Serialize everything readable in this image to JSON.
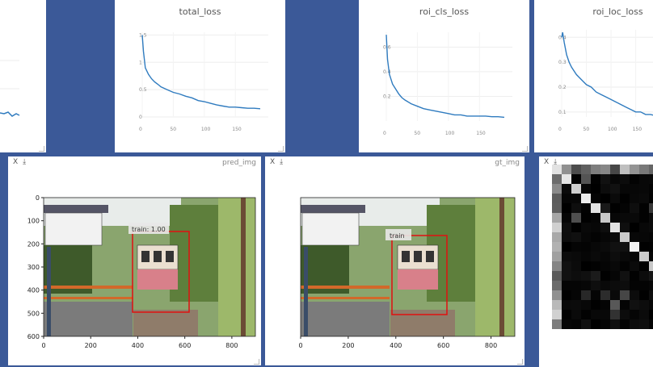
{
  "colors": {
    "background": "#3b5998",
    "line": "#2f7bbf",
    "bbox": "#e01010"
  },
  "charts": [
    {
      "title": "",
      "ticks_y": [],
      "ticks_x": []
    },
    {
      "title": "total_loss",
      "ticks_y": [
        "1.5",
        "1",
        "0.5",
        "0"
      ],
      "ticks_x": [
        "0",
        "50",
        "100",
        "150"
      ]
    },
    {
      "title": "roi_cls_loss",
      "ticks_y": [
        "0.6",
        "0.4",
        "0.2"
      ],
      "ticks_x": [
        "0",
        "50",
        "100",
        "150"
      ]
    },
    {
      "title": "roi_loc_loss",
      "ticks_y": [
        "0.4",
        "0.3",
        "0.2",
        "0.1"
      ],
      "ticks_x": [
        "0",
        "50",
        "100",
        "150"
      ]
    }
  ],
  "chart_data": [
    {
      "type": "line",
      "title": "total_loss",
      "x": [
        0,
        2,
        5,
        10,
        15,
        20,
        25,
        30,
        40,
        50,
        60,
        70,
        80,
        90,
        100,
        110,
        120,
        130,
        140,
        150,
        160,
        170,
        180,
        190
      ],
      "y": [
        1.5,
        1.2,
        0.9,
        0.78,
        0.7,
        0.64,
        0.6,
        0.55,
        0.5,
        0.45,
        0.42,
        0.38,
        0.35,
        0.3,
        0.28,
        0.25,
        0.22,
        0.2,
        0.18,
        0.18,
        0.17,
        0.16,
        0.16,
        0.15
      ],
      "ylim": [
        0,
        1.55
      ],
      "xlim": [
        0,
        190
      ]
    },
    {
      "type": "line",
      "title": "roi_cls_loss",
      "x": [
        0,
        2,
        5,
        10,
        15,
        20,
        25,
        30,
        40,
        50,
        60,
        70,
        80,
        90,
        100,
        110,
        120,
        130,
        140,
        150,
        160,
        170,
        180,
        190
      ],
      "y": [
        0.7,
        0.5,
        0.38,
        0.3,
        0.26,
        0.22,
        0.19,
        0.17,
        0.14,
        0.12,
        0.1,
        0.09,
        0.08,
        0.07,
        0.06,
        0.05,
        0.05,
        0.04,
        0.04,
        0.04,
        0.04,
        0.035,
        0.035,
        0.03
      ],
      "ylim": [
        0,
        0.72
      ],
      "xlim": [
        0,
        190
      ]
    },
    {
      "type": "line",
      "title": "roi_loc_loss",
      "x": [
        0,
        2,
        5,
        10,
        15,
        20,
        30,
        40,
        50,
        60,
        70,
        80,
        90,
        100,
        110,
        120,
        130,
        140,
        150,
        160,
        170,
        180,
        190
      ],
      "y": [
        0.4,
        0.42,
        0.38,
        0.33,
        0.3,
        0.28,
        0.25,
        0.23,
        0.21,
        0.2,
        0.18,
        0.17,
        0.16,
        0.15,
        0.14,
        0.13,
        0.12,
        0.11,
        0.1,
        0.1,
        0.09,
        0.09,
        0.085
      ],
      "ylim": [
        0.08,
        0.43
      ],
      "xlim": [
        0,
        190
      ]
    }
  ],
  "images": [
    {
      "label": "pred_img",
      "bbox_label": "train: 1.00",
      "ticks_y": [
        "0",
        "100",
        "200",
        "300",
        "400",
        "500",
        "600"
      ],
      "ticks_x": [
        "0",
        "200",
        "400",
        "600",
        "800"
      ]
    },
    {
      "label": "gt_img",
      "bbox_label": "train",
      "ticks_y": [],
      "ticks_x": [
        "0",
        "200",
        "400",
        "600",
        "800"
      ]
    }
  ],
  "controls": {
    "close": "X",
    "download": "⤓"
  }
}
